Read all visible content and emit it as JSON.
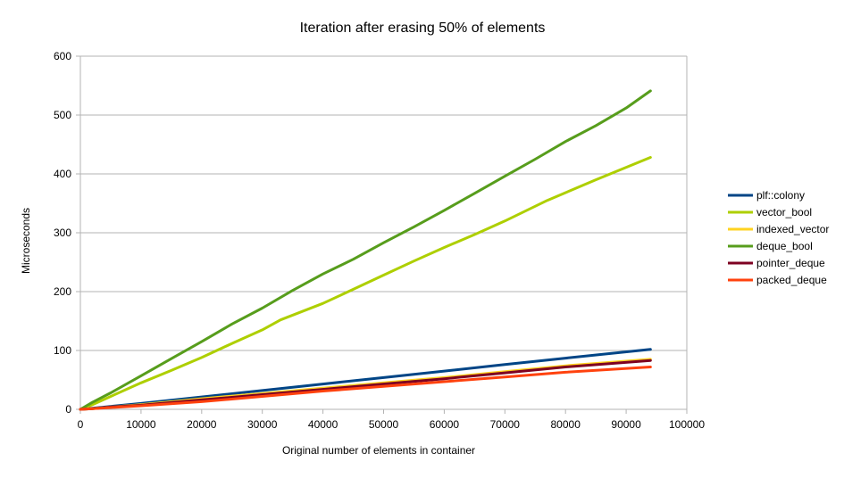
{
  "chart_data": {
    "type": "line",
    "title": "Iteration after erasing 50% of elements",
    "xlabel": "Original number of elements in container",
    "ylabel": "Microseconds",
    "xlim": [
      0,
      100000
    ],
    "ylim": [
      0,
      600
    ],
    "xticks": [
      0,
      10000,
      20000,
      30000,
      40000,
      50000,
      60000,
      70000,
      80000,
      90000,
      100000
    ],
    "yticks": [
      0,
      100,
      200,
      300,
      400,
      500,
      600
    ],
    "grid": true,
    "legend_position": "right",
    "series": [
      {
        "name": "plf::colony",
        "color": "#004586",
        "points": [
          [
            0,
            0
          ],
          [
            2000,
            2
          ],
          [
            5000,
            5
          ],
          [
            10000,
            10
          ],
          [
            20000,
            21
          ],
          [
            30000,
            32
          ],
          [
            40000,
            43
          ],
          [
            50000,
            54
          ],
          [
            60000,
            65
          ],
          [
            70000,
            76
          ],
          [
            80000,
            87
          ],
          [
            94000,
            102
          ]
        ]
      },
      {
        "name": "vector_bool",
        "color": "#aecf00",
        "points": [
          [
            0,
            0
          ],
          [
            2000,
            8
          ],
          [
            5000,
            22
          ],
          [
            10000,
            45
          ],
          [
            15000,
            66
          ],
          [
            20000,
            88
          ],
          [
            25000,
            112
          ],
          [
            30000,
            135
          ],
          [
            33000,
            152
          ],
          [
            40000,
            180
          ],
          [
            45000,
            204
          ],
          [
            50000,
            228
          ],
          [
            55000,
            252
          ],
          [
            60000,
            275
          ],
          [
            65000,
            297
          ],
          [
            70000,
            320
          ],
          [
            77000,
            355
          ],
          [
            85000,
            390
          ],
          [
            94000,
            428
          ]
        ]
      },
      {
        "name": "indexed_vector",
        "color": "#ffd320",
        "points": [
          [
            0,
            0
          ],
          [
            2000,
            1
          ],
          [
            5000,
            4
          ],
          [
            10000,
            8
          ],
          [
            20000,
            18
          ],
          [
            30000,
            27
          ],
          [
            40000,
            36
          ],
          [
            50000,
            45
          ],
          [
            60000,
            54
          ],
          [
            70000,
            64
          ],
          [
            80000,
            74
          ],
          [
            94000,
            85
          ]
        ]
      },
      {
        "name": "deque_bool",
        "color": "#579d1c",
        "points": [
          [
            0,
            0
          ],
          [
            2000,
            12
          ],
          [
            5000,
            28
          ],
          [
            10000,
            57
          ],
          [
            15000,
            86
          ],
          [
            20000,
            115
          ],
          [
            25000,
            145
          ],
          [
            30000,
            172
          ],
          [
            35000,
            202
          ],
          [
            40000,
            230
          ],
          [
            45000,
            255
          ],
          [
            50000,
            283
          ],
          [
            55000,
            310
          ],
          [
            60000,
            338
          ],
          [
            65000,
            367
          ],
          [
            70000,
            396
          ],
          [
            75000,
            425
          ],
          [
            80000,
            455
          ],
          [
            85000,
            482
          ],
          [
            90000,
            512
          ],
          [
            94000,
            541
          ]
        ]
      },
      {
        "name": "pointer_deque",
        "color": "#7e0021",
        "points": [
          [
            0,
            0
          ],
          [
            2000,
            1
          ],
          [
            5000,
            4
          ],
          [
            10000,
            7
          ],
          [
            20000,
            16
          ],
          [
            30000,
            25
          ],
          [
            40000,
            34
          ],
          [
            50000,
            43
          ],
          [
            60000,
            52
          ],
          [
            70000,
            62
          ],
          [
            80000,
            72
          ],
          [
            94000,
            83
          ]
        ]
      },
      {
        "name": "packed_deque",
        "color": "#ff420e",
        "points": [
          [
            0,
            0
          ],
          [
            2000,
            1
          ],
          [
            5000,
            3
          ],
          [
            10000,
            6
          ],
          [
            20000,
            13
          ],
          [
            30000,
            22
          ],
          [
            40000,
            31
          ],
          [
            50000,
            39
          ],
          [
            60000,
            47
          ],
          [
            70000,
            55
          ],
          [
            80000,
            63
          ],
          [
            94000,
            72
          ]
        ]
      }
    ]
  }
}
